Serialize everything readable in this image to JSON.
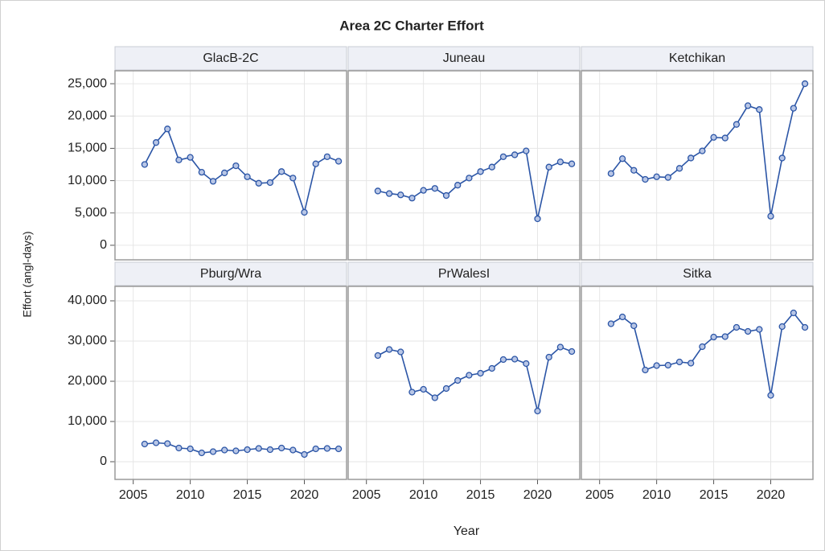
{
  "title": "Area 2C Charter Effort",
  "x_label": "Year",
  "y_label": "Effort (angl-days)",
  "chart_data": [
    {
      "type": "line",
      "title": "GlacB-2C",
      "color": "#2b55a6",
      "grid": true,
      "x": [
        2006,
        2007,
        2008,
        2009,
        2010,
        2011,
        2012,
        2013,
        2014,
        2015,
        2016,
        2017,
        2018,
        2019,
        2020,
        2021,
        2022,
        2023
      ],
      "values": [
        12500,
        15900,
        18000,
        13200,
        13600,
        11300,
        9900,
        11200,
        12300,
        10600,
        9600,
        9700,
        11400,
        10400,
        5100,
        12600,
        13700,
        13000
      ],
      "xlim": [
        2003.4,
        2023.7
      ],
      "xticks": [
        2005,
        2010,
        2015,
        2020
      ],
      "ylim": [
        -2250,
        27000
      ],
      "yticks": [
        0,
        {
          "value": 5000,
          "label": "5,000"
        },
        {
          "value": 10000,
          "label": "10,000"
        },
        {
          "value": 15000,
          "label": "15,000"
        },
        {
          "value": 20000,
          "label": "20,000"
        },
        {
          "value": 25000,
          "label": "25,000"
        }
      ]
    },
    {
      "type": "line",
      "title": "Juneau",
      "color": "#2b55a6",
      "grid": true,
      "x": [
        2006,
        2007,
        2008,
        2009,
        2010,
        2011,
        2012,
        2013,
        2014,
        2015,
        2016,
        2017,
        2018,
        2019,
        2020,
        2021,
        2022,
        2023
      ],
      "values": [
        8400,
        8000,
        7800,
        7300,
        8500,
        8800,
        7700,
        9300,
        10400,
        11400,
        12100,
        13700,
        14000,
        14600,
        4100,
        12100,
        12900,
        12600
      ],
      "xlim": [
        2003.4,
        2023.7
      ],
      "xticks": [
        2005,
        2010,
        2015,
        2020
      ],
      "ylim": [
        -2250,
        27000
      ],
      "yticks": [
        0,
        {
          "value": 5000,
          "label": "5,000"
        },
        {
          "value": 10000,
          "label": "10,000"
        },
        {
          "value": 15000,
          "label": "15,000"
        },
        {
          "value": 20000,
          "label": "20,000"
        },
        {
          "value": 25000,
          "label": "25,000"
        }
      ]
    },
    {
      "type": "line",
      "title": "Ketchikan",
      "color": "#2b55a6",
      "grid": true,
      "x": [
        2006,
        2007,
        2008,
        2009,
        2010,
        2011,
        2012,
        2013,
        2014,
        2015,
        2016,
        2017,
        2018,
        2019,
        2020,
        2021,
        2022,
        2023
      ],
      "values": [
        11100,
        13400,
        11600,
        10200,
        10600,
        10500,
        11900,
        13500,
        14600,
        16700,
        16600,
        18700,
        21600,
        21000,
        4500,
        13500,
        21200,
        25000
      ],
      "xlim": [
        2003.4,
        2023.7
      ],
      "xticks": [
        2005,
        2010,
        2015,
        2020
      ],
      "ylim": [
        -2250,
        27000
      ],
      "yticks": [
        0,
        {
          "value": 5000,
          "label": "5,000"
        },
        {
          "value": 10000,
          "label": "10,000"
        },
        {
          "value": 15000,
          "label": "15,000"
        },
        {
          "value": 20000,
          "label": "20,000"
        },
        {
          "value": 25000,
          "label": "25,000"
        }
      ]
    },
    {
      "type": "line",
      "title": "Pburg/Wra",
      "color": "#2b55a6",
      "grid": true,
      "x": [
        2006,
        2007,
        2008,
        2009,
        2010,
        2011,
        2012,
        2013,
        2014,
        2015,
        2016,
        2017,
        2018,
        2019,
        2020,
        2021,
        2022,
        2023
      ],
      "values": [
        4400,
        4700,
        4500,
        3400,
        3200,
        2200,
        2500,
        2900,
        2700,
        3000,
        3300,
        3000,
        3400,
        2900,
        1800,
        3200,
        3300,
        3200
      ],
      "xlim": [
        2003.4,
        2023.7
      ],
      "xticks": [
        2005,
        2010,
        2015,
        2020
      ],
      "ylim": [
        -4400,
        43600
      ],
      "yticks": [
        0,
        {
          "value": 10000,
          "label": "10,000"
        },
        {
          "value": 20000,
          "label": "20,000"
        },
        {
          "value": 30000,
          "label": "30,000"
        },
        {
          "value": 40000,
          "label": "40,000"
        }
      ]
    },
    {
      "type": "line",
      "title": "PrWalesI",
      "color": "#2b55a6",
      "grid": true,
      "x": [
        2006,
        2007,
        2008,
        2009,
        2010,
        2011,
        2012,
        2013,
        2014,
        2015,
        2016,
        2017,
        2018,
        2019,
        2020,
        2021,
        2022,
        2023
      ],
      "values": [
        26400,
        27900,
        27300,
        17300,
        18000,
        15900,
        18200,
        20200,
        21500,
        22000,
        23200,
        25400,
        25500,
        24400,
        12600,
        26000,
        28500,
        27400
      ],
      "xlim": [
        2003.4,
        2023.7
      ],
      "xticks": [
        2005,
        2010,
        2015,
        2020
      ],
      "ylim": [
        -4400,
        43600
      ],
      "yticks": [
        0,
        {
          "value": 10000,
          "label": "10,000"
        },
        {
          "value": 20000,
          "label": "20,000"
        },
        {
          "value": 30000,
          "label": "30,000"
        },
        {
          "value": 40000,
          "label": "40,000"
        }
      ]
    },
    {
      "type": "line",
      "title": "Sitka",
      "color": "#2b55a6",
      "grid": true,
      "x": [
        2006,
        2007,
        2008,
        2009,
        2010,
        2011,
        2012,
        2013,
        2014,
        2015,
        2016,
        2017,
        2018,
        2019,
        2020,
        2021,
        2022,
        2023
      ],
      "values": [
        34300,
        36000,
        33800,
        22800,
        23900,
        24000,
        24800,
        24500,
        28600,
        31000,
        31100,
        33400,
        32400,
        32900,
        16500,
        33600,
        37000,
        33400
      ],
      "xlim": [
        2003.4,
        2023.7
      ],
      "xticks": [
        2005,
        2010,
        2015,
        2020
      ],
      "ylim": [
        -4400,
        43600
      ],
      "yticks": [
        0,
        {
          "value": 10000,
          "label": "10,000"
        },
        {
          "value": 20000,
          "label": "20,000"
        },
        {
          "value": 30000,
          "label": "30,000"
        },
        {
          "value": 40000,
          "label": "40,000"
        }
      ]
    }
  ]
}
